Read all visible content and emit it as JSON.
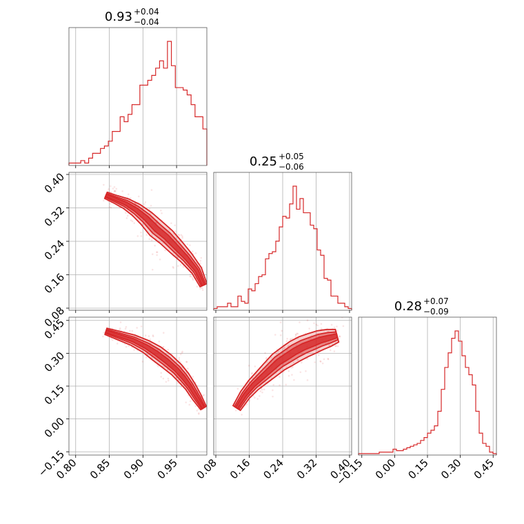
{
  "chart_data": {
    "type": "corner",
    "colors": {
      "main": "#d62728"
    },
    "grid": true,
    "params": [
      {
        "range": [
          0.79,
          0.995
        ],
        "ticks": [
          "0.80",
          "0.85",
          "0.90",
          "0.95"
        ],
        "tick_values": [
          0.8,
          0.85,
          0.9,
          0.95
        ],
        "title": {
          "median": "0.93",
          "plus": "+0.04",
          "minus": "−0.04"
        }
      },
      {
        "range": [
          0.075,
          0.405
        ],
        "ticks": [
          "0.08",
          "0.16",
          "0.24",
          "0.32",
          "0.40"
        ],
        "tick_values": [
          0.08,
          0.16,
          0.24,
          0.32,
          0.4
        ],
        "title": {
          "median": "0.25",
          "plus": "+0.05",
          "minus": "−0.06"
        }
      },
      {
        "range": [
          -0.165,
          0.465
        ],
        "ticks": [
          "−0.15",
          "0.00",
          "0.15",
          "0.30",
          "0.45"
        ],
        "tick_values": [
          -0.15,
          0.0,
          0.15,
          0.3,
          0.45
        ],
        "title": {
          "median": "0.28",
          "plus": "+0.07",
          "minus": "−0.09"
        }
      }
    ],
    "histograms": [
      {
        "param": 0,
        "counts": [
          1,
          1,
          1,
          2,
          1,
          3,
          5,
          5,
          7,
          8,
          10,
          14,
          14,
          20,
          18,
          21,
          25,
          25,
          33,
          33,
          35,
          37,
          40,
          43,
          40,
          51,
          41,
          32,
          32,
          31,
          29,
          25,
          20,
          20,
          15
        ]
      },
      {
        "param": 1,
        "counts": [
          1,
          2,
          2,
          2,
          4,
          2,
          2,
          8,
          5,
          4,
          12,
          11,
          15,
          19,
          20,
          29,
          32,
          33,
          39,
          47,
          53,
          52,
          60,
          70,
          57,
          63,
          55,
          55,
          48,
          46,
          34,
          31,
          18,
          17,
          8,
          8,
          4,
          4,
          2,
          1
        ]
      },
      {
        "param": 2,
        "counts": [
          1,
          1,
          1,
          1,
          1,
          1,
          2,
          2,
          2,
          2,
          4,
          3,
          3,
          4,
          5,
          6,
          7,
          8,
          10,
          12,
          15,
          17,
          20,
          30,
          45,
          60,
          70,
          80,
          85,
          78,
          68,
          60,
          55,
          48,
          30,
          15,
          8,
          6,
          2,
          1
        ]
      }
    ],
    "joints": [
      {
        "x_param": 0,
        "y_param": 1,
        "ridge_x": [
          0.845,
          0.86,
          0.875,
          0.89,
          0.905,
          0.92,
          0.935,
          0.95,
          0.965,
          0.98,
          0.99
        ],
        "ridge_y": [
          0.35,
          0.34,
          0.33,
          0.315,
          0.295,
          0.27,
          0.25,
          0.225,
          0.2,
          0.17,
          0.135
        ],
        "widths": [
          0.008,
          0.01,
          0.013,
          0.016,
          0.019,
          0.022,
          0.021,
          0.019,
          0.016,
          0.013,
          0.009
        ]
      },
      {
        "x_param": 0,
        "y_param": 2,
        "ridge_x": [
          0.845,
          0.865,
          0.885,
          0.905,
          0.92,
          0.935,
          0.95,
          0.96,
          0.97,
          0.98,
          0.99
        ],
        "ridge_y": [
          0.4,
          0.38,
          0.36,
          0.33,
          0.3,
          0.265,
          0.225,
          0.19,
          0.15,
          0.1,
          0.05
        ],
        "widths": [
          0.015,
          0.02,
          0.025,
          0.03,
          0.035,
          0.035,
          0.032,
          0.03,
          0.025,
          0.022,
          0.015
        ]
      },
      {
        "x_param": 1,
        "y_param": 2,
        "ridge_x": [
          0.13,
          0.15,
          0.17,
          0.19,
          0.21,
          0.23,
          0.25,
          0.27,
          0.29,
          0.31,
          0.33,
          0.35,
          0.37
        ],
        "ridge_y": [
          0.05,
          0.11,
          0.155,
          0.19,
          0.225,
          0.26,
          0.285,
          0.31,
          0.33,
          0.345,
          0.36,
          0.37,
          0.38
        ],
        "widths": [
          0.02,
          0.025,
          0.03,
          0.035,
          0.04,
          0.045,
          0.048,
          0.05,
          0.05,
          0.048,
          0.045,
          0.04,
          0.03
        ]
      }
    ]
  }
}
